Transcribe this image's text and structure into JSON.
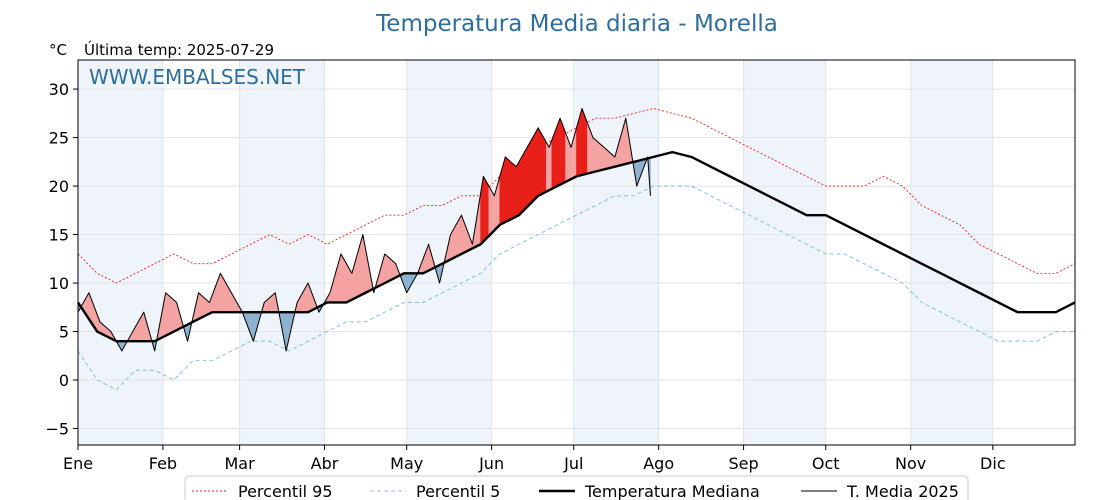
{
  "chart_data": {
    "type": "line",
    "title": "Temperatura Media diaria - Morella",
    "unit": "°C",
    "last_temp_label": "Última temp: 2025-07-29",
    "watermark": "WWW.EMBALSES.NET",
    "ylim": [
      -6.7,
      33
    ],
    "yticks": [
      -5,
      0,
      5,
      10,
      15,
      20,
      25,
      30
    ],
    "ytick_labels": [
      "−5",
      "0",
      "5",
      "10",
      "15",
      "20",
      "25",
      "30"
    ],
    "months": [
      "Ene",
      "Feb",
      "Mar",
      "Abr",
      "May",
      "Jun",
      "Jul",
      "Ago",
      "Sep",
      "Oct",
      "Nov",
      "Dic"
    ],
    "legend_position": "bottom-center",
    "grid": true,
    "colors": {
      "p95": "#e8201a",
      "p5": "#8ec7dc",
      "median": "#000000",
      "current": "#000000",
      "above": "#f4a3a3",
      "above_strong": "#e8201a",
      "below": "#8fb3cf",
      "below_strong": "#1f5e94",
      "month_band": "#eef4fa",
      "title": "#2e6e9e"
    },
    "series": [
      {
        "name": "Percentil 95",
        "key": "p95",
        "x": [
          1,
          8,
          15,
          22,
          29,
          36,
          43,
          50,
          57,
          64,
          71,
          78,
          85,
          92,
          99,
          106,
          113,
          120,
          127,
          134,
          141,
          148,
          155,
          162,
          169,
          176,
          183,
          190,
          197,
          204,
          211,
          218,
          225,
          232,
          239,
          246,
          253,
          260,
          267,
          274,
          281,
          288,
          295,
          302,
          309,
          316,
          323,
          330,
          337,
          344,
          351,
          358,
          365
        ],
        "values": [
          13,
          11,
          10,
          11,
          12,
          13,
          12,
          12,
          13,
          14,
          15,
          14,
          15,
          14,
          15,
          16,
          17,
          17,
          18,
          18,
          19,
          19,
          21,
          22,
          24,
          25,
          26,
          27,
          27,
          27.5,
          28,
          27.5,
          27,
          26,
          25,
          24,
          23,
          22,
          21,
          20,
          20,
          20,
          21,
          20,
          18,
          17,
          16,
          14,
          13,
          12,
          11,
          11,
          12
        ]
      },
      {
        "name": "Percentil 5",
        "key": "p5",
        "x": [
          1,
          8,
          15,
          22,
          29,
          36,
          43,
          50,
          57,
          64,
          71,
          78,
          85,
          92,
          99,
          106,
          113,
          120,
          127,
          134,
          141,
          148,
          155,
          162,
          169,
          176,
          183,
          190,
          197,
          204,
          211,
          218,
          225,
          232,
          239,
          246,
          253,
          260,
          267,
          274,
          281,
          288,
          295,
          302,
          309,
          316,
          323,
          330,
          337,
          344,
          351,
          358,
          365
        ],
        "values": [
          3,
          0,
          -1,
          1,
          1,
          0,
          2,
          2,
          3,
          4,
          4,
          3,
          4,
          5,
          6,
          6,
          7,
          8,
          8,
          9,
          10,
          11,
          13,
          14,
          15,
          16,
          17,
          18,
          19,
          19,
          20,
          20,
          20,
          19,
          18,
          17,
          16,
          15,
          14,
          13,
          13,
          12,
          11,
          10,
          8,
          7,
          6,
          5,
          4,
          4,
          4,
          5,
          5
        ]
      },
      {
        "name": "Temperatura Mediana",
        "key": "median",
        "x": [
          1,
          8,
          15,
          22,
          29,
          36,
          43,
          50,
          57,
          64,
          71,
          78,
          85,
          92,
          99,
          106,
          113,
          120,
          127,
          134,
          141,
          148,
          155,
          162,
          169,
          176,
          183,
          190,
          197,
          204,
          211,
          218,
          225,
          232,
          239,
          246,
          253,
          260,
          267,
          274,
          281,
          288,
          295,
          302,
          309,
          316,
          323,
          330,
          337,
          344,
          351,
          358,
          365
        ],
        "values": [
          8,
          5,
          4,
          4,
          4,
          5,
          6,
          7,
          7,
          7,
          7,
          7,
          7,
          8,
          8,
          9,
          10,
          11,
          11,
          12,
          13,
          14,
          16,
          17,
          19,
          20,
          21,
          21.5,
          22,
          22.5,
          23,
          23.5,
          23,
          22,
          21,
          20,
          19,
          18,
          17,
          17,
          16,
          15,
          14,
          13,
          12,
          11,
          10,
          9,
          8,
          7,
          7,
          7,
          8
        ]
      },
      {
        "name": "T. Media 2025",
        "key": "current",
        "x": [
          1,
          5,
          9,
          13,
          17,
          21,
          25,
          29,
          33,
          37,
          41,
          45,
          49,
          53,
          57,
          61,
          65,
          69,
          73,
          77,
          81,
          85,
          89,
          93,
          97,
          101,
          105,
          109,
          113,
          117,
          121,
          125,
          129,
          133,
          137,
          141,
          145,
          149,
          153,
          157,
          161,
          165,
          169,
          173,
          177,
          181,
          185,
          189,
          193,
          197,
          201,
          205,
          209,
          210
        ],
        "values": [
          7,
          9,
          6,
          5,
          3,
          5,
          7,
          3,
          9,
          8,
          4,
          9,
          8,
          11,
          9,
          7,
          4,
          8,
          9,
          3,
          8,
          10,
          7,
          9,
          13,
          11,
          15,
          9,
          13,
          12,
          9,
          11,
          14,
          10,
          15,
          17,
          14,
          21,
          19,
          23,
          22,
          24,
          26,
          24,
          27,
          24,
          28,
          25,
          24,
          23,
          27,
          20,
          23,
          19
        ]
      }
    ]
  },
  "legend": {
    "items": [
      {
        "label": "Percentil 95",
        "key": "p95"
      },
      {
        "label": "Percentil 5",
        "key": "p5"
      },
      {
        "label": "Temperatura Mediana",
        "key": "median"
      },
      {
        "label": "T. Media 2025",
        "key": "current"
      }
    ]
  }
}
